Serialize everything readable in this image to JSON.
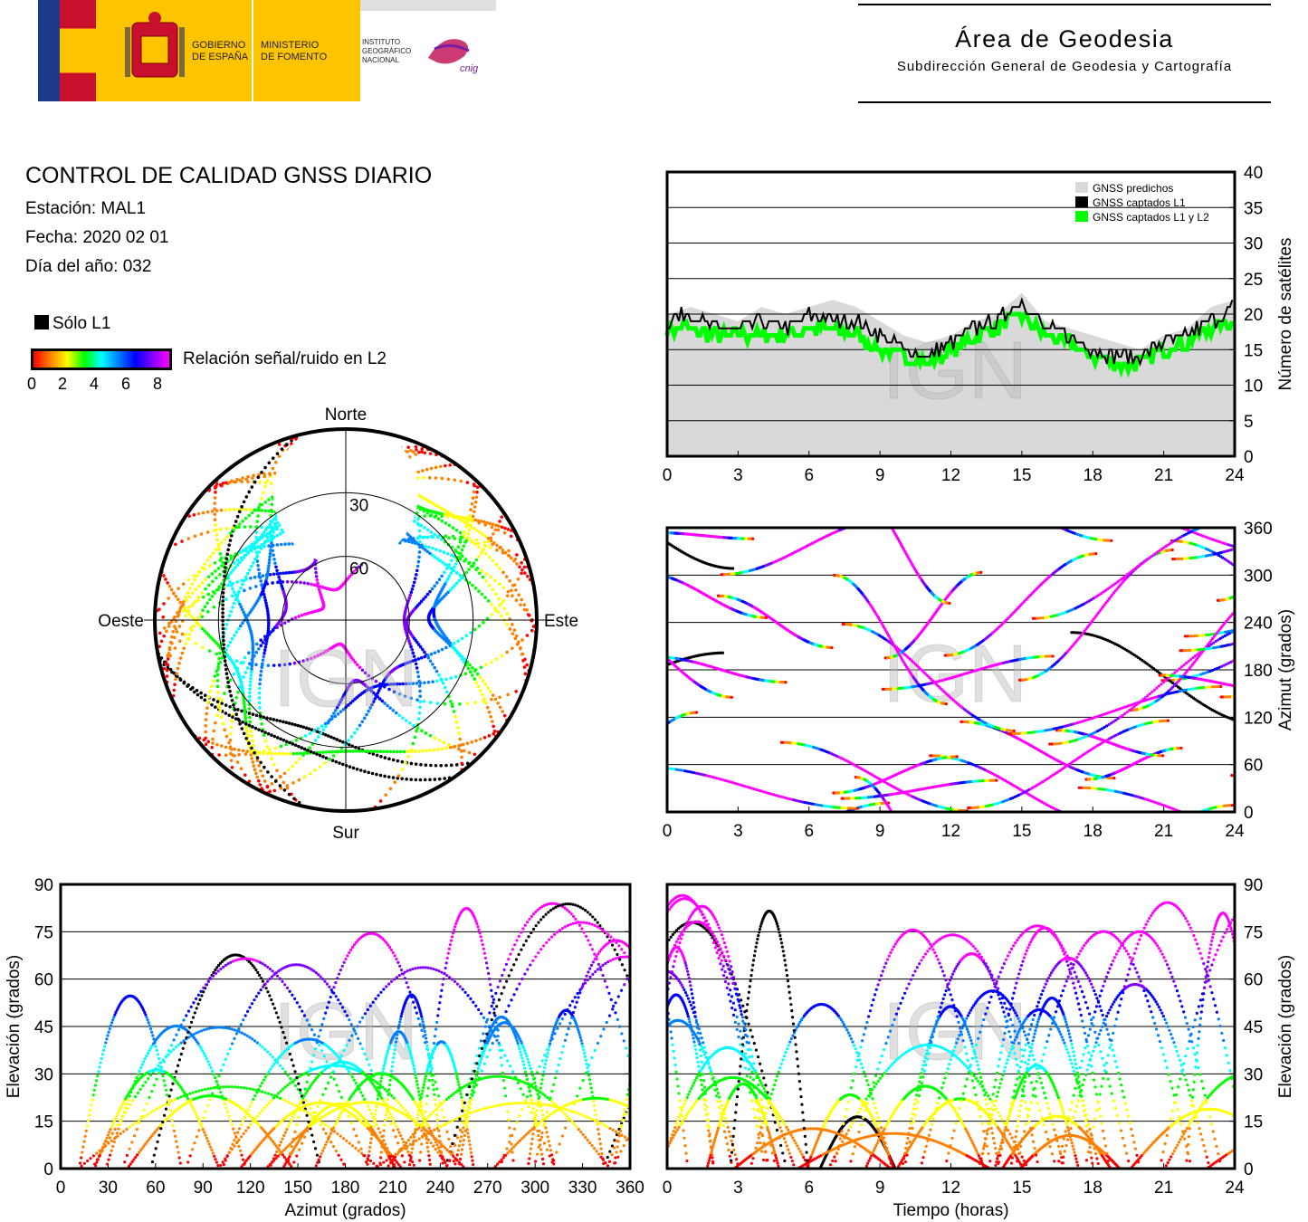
{
  "header": {
    "logos": {
      "gov_line1": "GOBIERNO",
      "gov_line2": "DE ESPAÑA",
      "min_line1": "MINISTERIO",
      "min_line2": "DE FOMENTO",
      "ign_line1": "INSTITUTO",
      "ign_line2": "GEOGRÁFICO",
      "ign_line3": "NACIONAL",
      "cnig": "cnig"
    },
    "title": "Área de Geodesia",
    "subtitle": "Subdirección General de Geodesia y Cartografía"
  },
  "info": {
    "title": "CONTROL DE CALIDAD GNSS DIARIO",
    "station": "Estación: MAL1",
    "date": "Fecha: 2020 02 01",
    "doy": "Día del año: 032"
  },
  "legend": {
    "l1_only": "Sólo L1",
    "snr_label": "Relación señal/ruido en L2",
    "snr_ticks": [
      "0",
      "2",
      "4",
      "6",
      "8"
    ]
  },
  "watermark": "IGN",
  "colors": {
    "predicted": "#d9d9d9",
    "l1": "#000000",
    "l1l2": "#00ff00",
    "snr_scale": [
      "#ff0000",
      "#ff8000",
      "#ffff00",
      "#00ff00",
      "#00ffff",
      "#0080ff",
      "#0000ff",
      "#8000ff",
      "#ff00ff"
    ]
  },
  "chart_data": [
    {
      "id": "sat-count",
      "type": "area",
      "xlabel": "",
      "ylabel": "Número de satélites",
      "xlim": [
        0,
        24
      ],
      "ylim": [
        0,
        40
      ],
      "xticks": [
        "0",
        "3",
        "6",
        "9",
        "12",
        "15",
        "18",
        "21",
        "24"
      ],
      "yticks": [
        "0",
        "5",
        "10",
        "15",
        "20",
        "25",
        "30",
        "35",
        "40"
      ],
      "grid": true,
      "legend_position": "top-right",
      "series": [
        {
          "name": "GNSS predichos",
          "x": [
            0,
            1,
            2,
            3,
            4,
            5,
            6,
            7,
            8,
            9,
            10,
            11,
            12,
            13,
            14,
            15,
            16,
            17,
            18,
            19,
            20,
            21,
            22,
            23,
            24
          ],
          "values": [
            20,
            21,
            20,
            19,
            21,
            20,
            21,
            22,
            21,
            19,
            17,
            16,
            17,
            19,
            20,
            23,
            19,
            18,
            17,
            16,
            15,
            17,
            18,
            21,
            22
          ]
        },
        {
          "name": "GNSS captados L1",
          "x": [
            0,
            1,
            2,
            3,
            4,
            5,
            6,
            7,
            8,
            9,
            10,
            11,
            12,
            13,
            14,
            15,
            16,
            17,
            18,
            19,
            20,
            21,
            22,
            23,
            24
          ],
          "values": [
            19,
            20,
            18,
            18,
            19,
            18,
            20,
            19,
            19,
            17,
            15,
            14,
            16,
            18,
            19,
            22,
            18,
            17,
            15,
            14,
            14,
            16,
            17,
            19,
            21
          ]
        },
        {
          "name": "GNSS captados L1 y L2",
          "x": [
            0,
            1,
            2,
            3,
            4,
            5,
            6,
            7,
            8,
            9,
            10,
            11,
            12,
            13,
            14,
            15,
            16,
            17,
            18,
            19,
            20,
            21,
            22,
            23,
            24
          ],
          "values": [
            18,
            18,
            17,
            17,
            17,
            17,
            18,
            18,
            17,
            15,
            14,
            13,
            15,
            17,
            18,
            20,
            17,
            16,
            14,
            13,
            13,
            15,
            16,
            18,
            19
          ]
        }
      ]
    },
    {
      "id": "skyplot",
      "type": "scatter",
      "title": "",
      "labels": {
        "north": "Norte",
        "south": "Sur",
        "east": "Este",
        "west": "Oeste"
      },
      "elev_rings": [
        "30",
        "60"
      ]
    },
    {
      "id": "azimuth-time",
      "type": "scatter",
      "xlabel": "",
      "ylabel": "Azimut (grados)",
      "xlim": [
        0,
        24
      ],
      "ylim": [
        0,
        360
      ],
      "xticks": [
        "0",
        "3",
        "6",
        "9",
        "12",
        "15",
        "18",
        "21",
        "24"
      ],
      "yticks": [
        "0",
        "60",
        "120",
        "180",
        "240",
        "300",
        "360"
      ],
      "grid": true
    },
    {
      "id": "elev-azimuth",
      "type": "scatter",
      "xlabel": "Azimut (grados)",
      "ylabel": "Elevación (grados)",
      "xlim": [
        0,
        360
      ],
      "ylim": [
        0,
        90
      ],
      "xticks": [
        "0",
        "30",
        "60",
        "90",
        "120",
        "150",
        "180",
        "210",
        "240",
        "270",
        "300",
        "330",
        "360"
      ],
      "yticks": [
        "0",
        "15",
        "30",
        "45",
        "60",
        "75",
        "90"
      ],
      "grid": true
    },
    {
      "id": "elev-time",
      "type": "scatter",
      "xlabel": "Tiempo (horas)",
      "ylabel": "Elevación (grados)",
      "xlim": [
        0,
        24
      ],
      "ylim": [
        0,
        90
      ],
      "xticks": [
        "0",
        "3",
        "6",
        "9",
        "12",
        "15",
        "18",
        "21",
        "24"
      ],
      "yticks": [
        "0",
        "15",
        "30",
        "45",
        "60",
        "75",
        "90"
      ],
      "grid": true
    }
  ]
}
